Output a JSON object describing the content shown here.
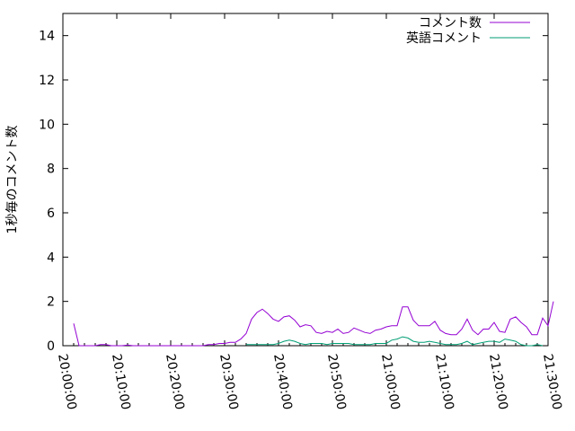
{
  "chart_data": {
    "type": "line",
    "title": "",
    "xlabel": "",
    "ylabel": "1秒毎のコメント数",
    "xlim": [
      "20:00:00",
      "21:30:00"
    ],
    "ylim": [
      0,
      15
    ],
    "grid": false,
    "legend_position": "top-right",
    "x_ticks": [
      "20:00:00",
      "20:10:00",
      "20:20:00",
      "20:30:00",
      "20:40:00",
      "20:50:00",
      "21:00:00",
      "21:10:00",
      "21:20:00",
      "21:30:00"
    ],
    "y_ticks": [
      "0",
      "2",
      "4",
      "6",
      "8",
      "10",
      "12",
      "14"
    ],
    "x_start": "20:02:00",
    "x_step_minutes": 1,
    "series": [
      {
        "name": "コメント数",
        "color": "#9400d3",
        "values": [
          1.0,
          0,
          0,
          0,
          0,
          0.05,
          0.05,
          0,
          0,
          0,
          0.03,
          0,
          0,
          0,
          0,
          0,
          0,
          0,
          0,
          0,
          0,
          0,
          0,
          0,
          0,
          0.05,
          0.05,
          0.1,
          0.1,
          0.15,
          0.15,
          0.3,
          0.55,
          1.2,
          1.5,
          1.65,
          1.45,
          1.2,
          1.1,
          1.3,
          1.35,
          1.15,
          0.85,
          0.95,
          0.9,
          0.6,
          0.55,
          0.65,
          0.6,
          0.75,
          0.55,
          0.6,
          0.8,
          0.7,
          0.6,
          0.55,
          0.7,
          0.75,
          0.85,
          0.9,
          0.9,
          1.75,
          1.75,
          1.15,
          0.9,
          0.9,
          0.9,
          1.1,
          0.7,
          0.55,
          0.5,
          0.5,
          0.75,
          1.2,
          0.7,
          0.5,
          0.75,
          0.75,
          1.05,
          0.65,
          0.6,
          1.2,
          1.3,
          1.05,
          0.85,
          0.5,
          0.5,
          1.25,
          0.9,
          2.0
        ]
      },
      {
        "name": "英語コメント",
        "color": "#009e73",
        "values": [
          null,
          null,
          null,
          null,
          null,
          null,
          null,
          null,
          null,
          null,
          null,
          null,
          null,
          null,
          null,
          null,
          null,
          null,
          null,
          null,
          null,
          null,
          null,
          null,
          null,
          null,
          null,
          null,
          null,
          null,
          null,
          null,
          0.05,
          0.05,
          0.05,
          0.05,
          0.05,
          0.05,
          0.1,
          0.2,
          0.25,
          0.2,
          0.1,
          0.05,
          0.1,
          0.1,
          0.1,
          0.05,
          0.1,
          0.1,
          0.1,
          0.1,
          0.05,
          0.05,
          0.05,
          0.05,
          0.1,
          0.1,
          0.1,
          0.25,
          0.3,
          0.4,
          0.35,
          0.2,
          0.15,
          0.15,
          0.2,
          0.15,
          0.1,
          0.05,
          0.05,
          0.05,
          0.1,
          0.2,
          0.05,
          0.1,
          0.15,
          0.2,
          0.2,
          0.15,
          0.3,
          0.25,
          0.2,
          0.05,
          0,
          0,
          0.05,
          0,
          null
        ]
      }
    ]
  }
}
